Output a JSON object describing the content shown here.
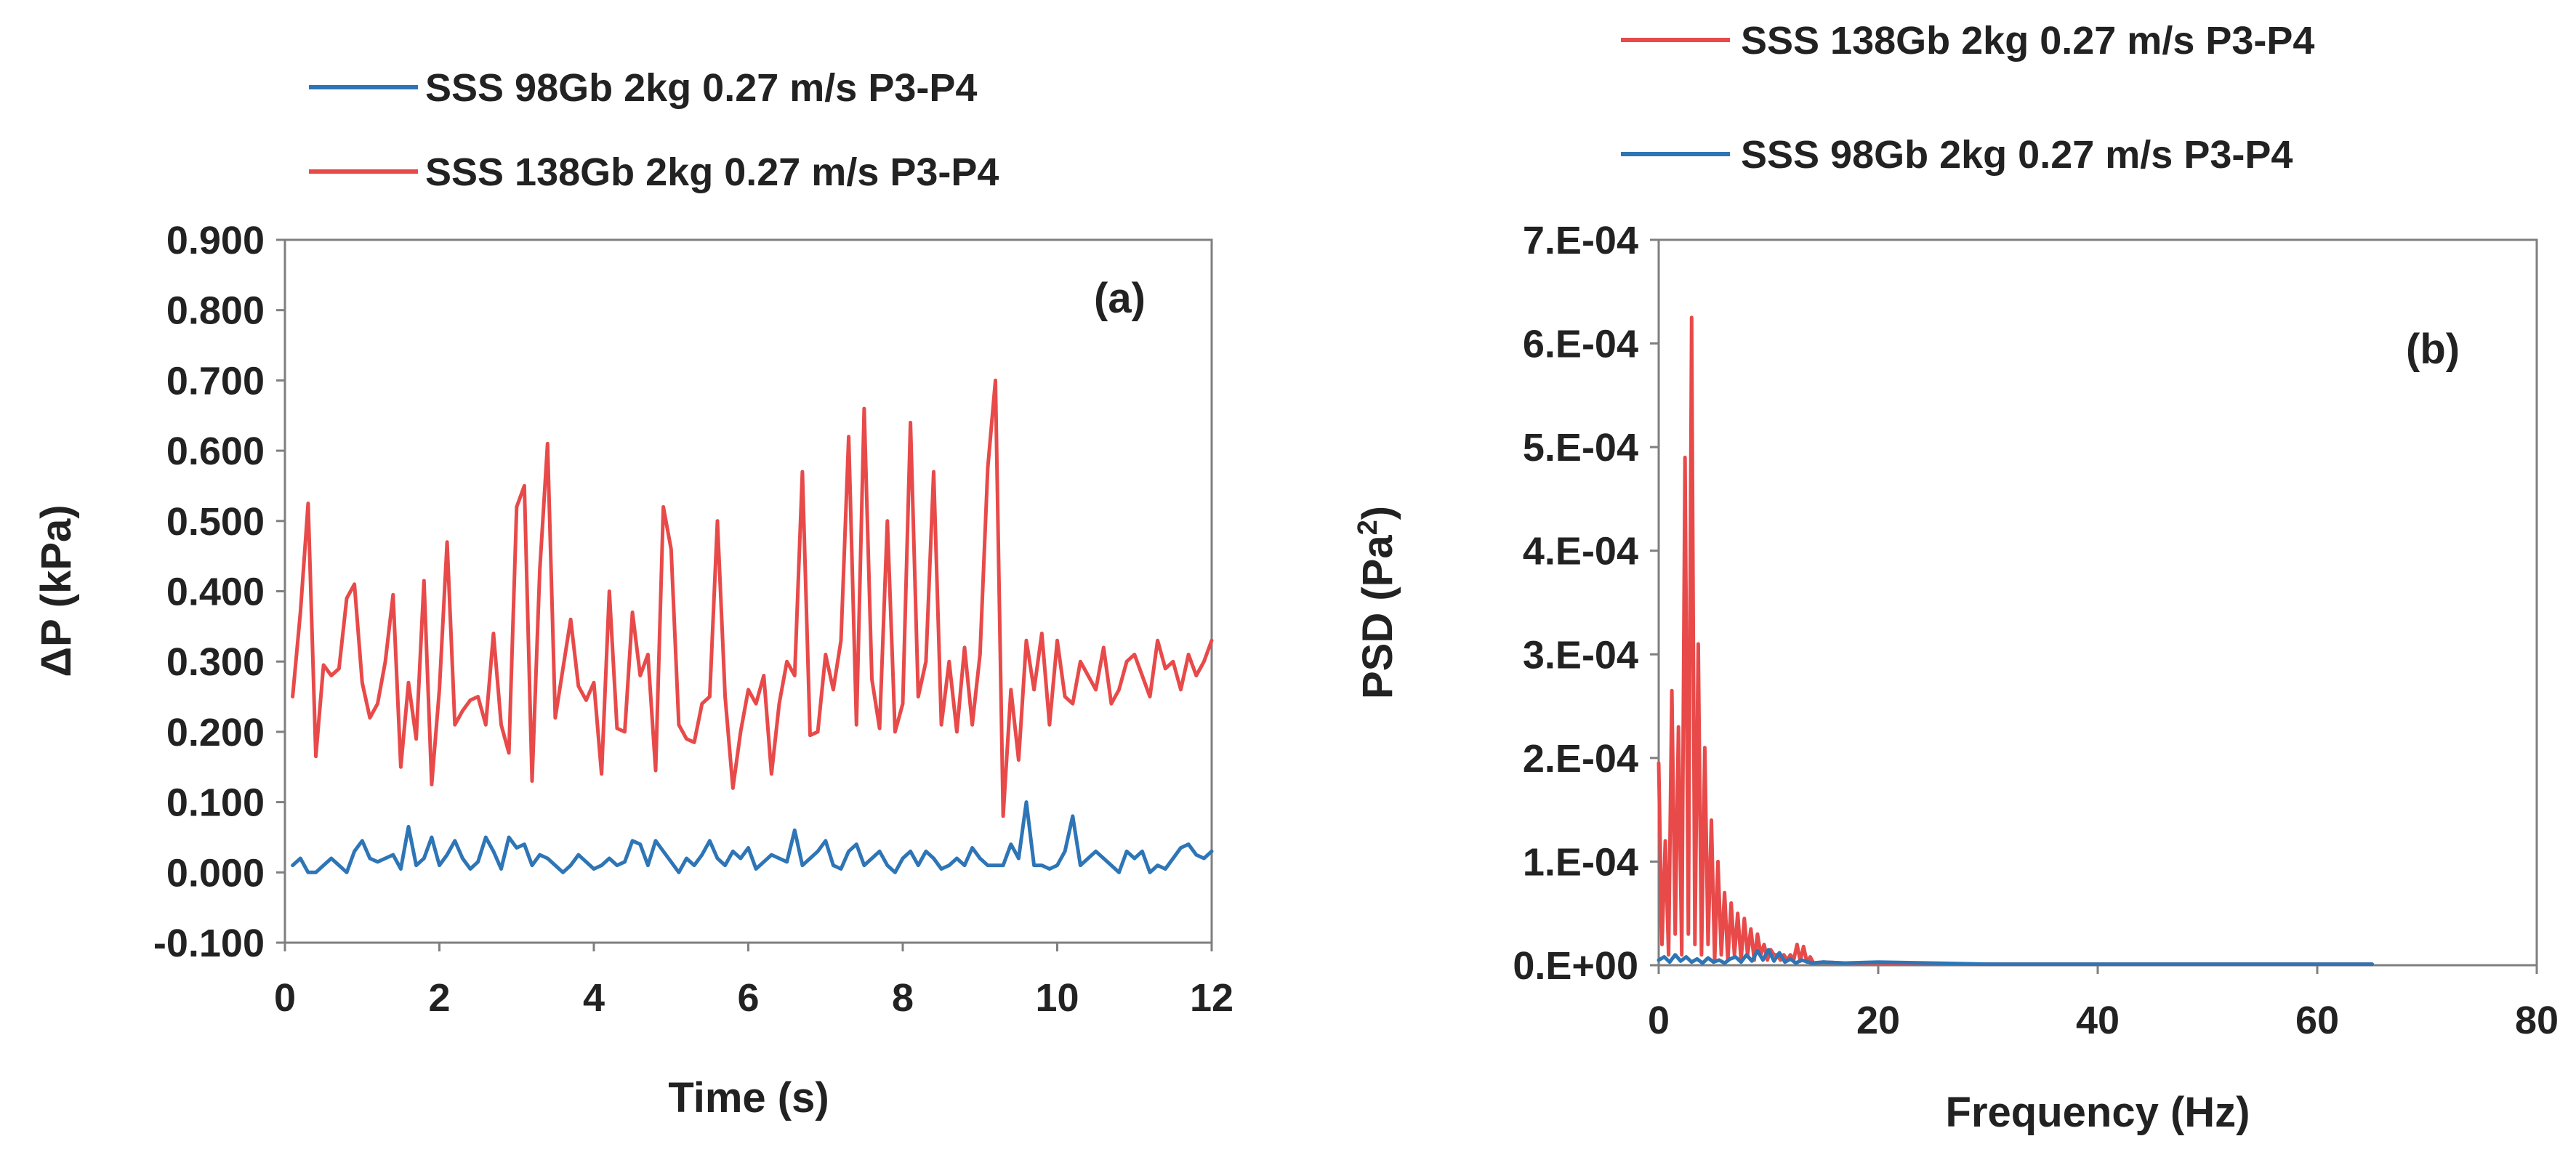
{
  "chart_data": [
    {
      "type": "line",
      "panel_label": "(a)",
      "xlabel": "Time (s)",
      "ylabel": "ΔP (kPa)",
      "xlim": [
        0,
        12
      ],
      "ylim": [
        -0.1,
        0.9
      ],
      "x_ticks": [
        0,
        2,
        4,
        6,
        8,
        10,
        12
      ],
      "x_tick_labels": [
        "0",
        "2",
        "4",
        "6",
        "8",
        "10",
        "12"
      ],
      "y_ticks": [
        -0.1,
        0.0,
        0.1,
        0.2,
        0.3,
        0.4,
        0.5,
        0.6,
        0.7,
        0.8,
        0.9
      ],
      "y_tick_labels": [
        "-0.100",
        "0.000",
        "0.100",
        "0.200",
        "0.300",
        "0.400",
        "0.500",
        "0.600",
        "0.700",
        "0.800",
        "0.900"
      ],
      "grid": false,
      "legend_position": "top",
      "legend": [
        "SSS 98Gb 2kg 0.27 m/s P3-P4",
        "SSS 138Gb 2kg 0.27 m/s P3-P4"
      ],
      "series": [
        {
          "name": "SSS 98Gb 2kg 0.27 m/s P3-P4",
          "color": "#2e75b6",
          "x": [
            0.1,
            0.2,
            0.3,
            0.4,
            0.5,
            0.6,
            0.7,
            0.8,
            0.9,
            1.0,
            1.1,
            1.2,
            1.3,
            1.4,
            1.5,
            1.6,
            1.7,
            1.8,
            1.9,
            2.0,
            2.1,
            2.2,
            2.3,
            2.4,
            2.5,
            2.6,
            2.7,
            2.8,
            2.9,
            3.0,
            3.1,
            3.2,
            3.3,
            3.4,
            3.5,
            3.6,
            3.7,
            3.8,
            3.9,
            4.0,
            4.1,
            4.2,
            4.3,
            4.4,
            4.5,
            4.6,
            4.7,
            4.8,
            4.9,
            5.0,
            5.1,
            5.2,
            5.3,
            5.4,
            5.5,
            5.6,
            5.7,
            5.8,
            5.9,
            6.0,
            6.1,
            6.2,
            6.3,
            6.4,
            6.5,
            6.6,
            6.7,
            6.8,
            6.9,
            7.0,
            7.1,
            7.2,
            7.3,
            7.4,
            7.5,
            7.6,
            7.7,
            7.8,
            7.9,
            8.0,
            8.1,
            8.2,
            8.3,
            8.4,
            8.5,
            8.6,
            8.7,
            8.8,
            8.9,
            9.0,
            9.1,
            9.2,
            9.3,
            9.4,
            9.5,
            9.6,
            9.7,
            9.8,
            9.9,
            10.0,
            10.1,
            10.2,
            10.3,
            10.4,
            10.5,
            10.6,
            10.7,
            10.8,
            10.9,
            11.0,
            11.1,
            11.2,
            11.3,
            11.4,
            11.5,
            11.6,
            11.7,
            11.8,
            11.9,
            12.0
          ],
          "values": [
            0.01,
            0.02,
            0.0,
            0.0,
            0.01,
            0.02,
            0.01,
            0.0,
            0.03,
            0.045,
            0.02,
            0.015,
            0.02,
            0.025,
            0.005,
            0.065,
            0.01,
            0.02,
            0.05,
            0.01,
            0.025,
            0.045,
            0.02,
            0.005,
            0.015,
            0.05,
            0.03,
            0.005,
            0.05,
            0.035,
            0.04,
            0.01,
            0.025,
            0.02,
            0.01,
            0.0,
            0.01,
            0.025,
            0.015,
            0.005,
            0.01,
            0.02,
            0.01,
            0.015,
            0.045,
            0.04,
            0.01,
            0.045,
            0.03,
            0.015,
            0.0,
            0.02,
            0.01,
            0.025,
            0.045,
            0.02,
            0.01,
            0.03,
            0.02,
            0.035,
            0.005,
            0.015,
            0.025,
            0.02,
            0.015,
            0.06,
            0.01,
            0.02,
            0.03,
            0.045,
            0.01,
            0.005,
            0.03,
            0.04,
            0.01,
            0.02,
            0.03,
            0.01,
            0.0,
            0.02,
            0.03,
            0.01,
            0.03,
            0.02,
            0.005,
            0.01,
            0.02,
            0.01,
            0.035,
            0.02,
            0.01,
            0.01,
            0.01,
            0.04,
            0.02,
            0.1,
            0.01,
            0.01,
            0.005,
            0.01,
            0.03,
            0.08,
            0.01,
            0.02,
            0.03,
            0.02,
            0.01,
            0.0,
            0.03,
            0.02,
            0.03,
            0.0,
            0.01,
            0.005,
            0.02,
            0.035,
            0.04,
            0.025,
            0.02,
            0.03
          ]
        },
        {
          "name": "SSS 138Gb 2kg 0.27 m/s P3-P4",
          "color": "#e84a4a",
          "x": [
            0.1,
            0.2,
            0.3,
            0.4,
            0.5,
            0.6,
            0.7,
            0.8,
            0.9,
            1.0,
            1.1,
            1.2,
            1.3,
            1.4,
            1.5,
            1.6,
            1.7,
            1.8,
            1.9,
            2.0,
            2.1,
            2.2,
            2.3,
            2.4,
            2.5,
            2.6,
            2.7,
            2.8,
            2.9,
            3.0,
            3.1,
            3.2,
            3.3,
            3.4,
            3.5,
            3.6,
            3.7,
            3.8,
            3.9,
            4.0,
            4.1,
            4.2,
            4.3,
            4.4,
            4.5,
            4.6,
            4.7,
            4.8,
            4.9,
            5.0,
            5.1,
            5.2,
            5.3,
            5.4,
            5.5,
            5.6,
            5.7,
            5.8,
            5.9,
            6.0,
            6.1,
            6.2,
            6.3,
            6.4,
            6.5,
            6.6,
            6.7,
            6.8,
            6.9,
            7.0,
            7.1,
            7.2,
            7.3,
            7.4,
            7.5,
            7.6,
            7.7,
            7.8,
            7.9,
            8.0,
            8.1,
            8.2,
            8.3,
            8.4,
            8.5,
            8.6,
            8.7,
            8.8,
            8.9,
            9.0,
            9.1,
            9.2,
            9.3,
            9.4,
            9.5,
            9.6,
            9.7,
            9.8,
            9.9,
            10.0,
            10.1,
            10.2,
            10.3,
            10.4,
            10.5,
            10.6,
            10.7,
            10.8,
            10.9,
            11.0,
            11.1,
            11.2,
            11.3,
            11.4,
            11.5,
            11.6,
            11.7,
            11.8,
            11.9,
            12.0
          ],
          "values": [
            0.25,
            0.37,
            0.525,
            0.165,
            0.295,
            0.28,
            0.29,
            0.39,
            0.41,
            0.27,
            0.22,
            0.24,
            0.3,
            0.395,
            0.15,
            0.27,
            0.19,
            0.415,
            0.125,
            0.26,
            0.47,
            0.21,
            0.23,
            0.245,
            0.25,
            0.21,
            0.34,
            0.21,
            0.17,
            0.52,
            0.55,
            0.13,
            0.43,
            0.61,
            0.22,
            0.29,
            0.36,
            0.265,
            0.245,
            0.27,
            0.14,
            0.4,
            0.205,
            0.2,
            0.37,
            0.28,
            0.31,
            0.145,
            0.52,
            0.46,
            0.21,
            0.19,
            0.185,
            0.24,
            0.25,
            0.5,
            0.25,
            0.12,
            0.2,
            0.26,
            0.24,
            0.28,
            0.14,
            0.24,
            0.3,
            0.28,
            0.57,
            0.195,
            0.2,
            0.31,
            0.26,
            0.33,
            0.62,
            0.21,
            0.66,
            0.275,
            0.205,
            0.5,
            0.2,
            0.24,
            0.64,
            0.25,
            0.3,
            0.57,
            0.21,
            0.3,
            0.2,
            0.32,
            0.21,
            0.31,
            0.575,
            0.7,
            0.08,
            0.26,
            0.16,
            0.33,
            0.26,
            0.34,
            0.21,
            0.33,
            0.25,
            0.24,
            0.3,
            0.28,
            0.26,
            0.32,
            0.24,
            0.26,
            0.3,
            0.31,
            0.28,
            0.25,
            0.33,
            0.29,
            0.3,
            0.26,
            0.31,
            0.28,
            0.3,
            0.33
          ]
        }
      ]
    },
    {
      "type": "line",
      "panel_label": "(b)",
      "xlabel": "Frequency (Hz)",
      "ylabel": "PSD (Pa",
      "ylabel_superscript": "2",
      "ylabel_suffix": ")",
      "xlim": [
        0,
        80
      ],
      "ylim": [
        0,
        0.0007
      ],
      "x_ticks": [
        0,
        20,
        40,
        60,
        80
      ],
      "x_tick_labels": [
        "0",
        "20",
        "40",
        "60",
        "80"
      ],
      "y_ticks": [
        0,
        0.0001,
        0.0002,
        0.0003,
        0.0004,
        0.0005,
        0.0006,
        0.0007
      ],
      "y_tick_labels": [
        "0.E+00",
        "1.E-04",
        "2.E-04",
        "3.E-04",
        "4.E-04",
        "5.E-04",
        "6.E-04",
        "7.E-04"
      ],
      "grid": false,
      "legend_position": "top",
      "legend": [
        "SSS 138Gb 2kg 0.27 m/s P3-P4",
        "SSS 98Gb 2kg 0.27 m/s P3-P4"
      ],
      "series": [
        {
          "name": "SSS 138Gb 2kg 0.27 m/s P3-P4",
          "color": "#e84a4a",
          "x": [
            0.0,
            0.3,
            0.6,
            0.9,
            1.2,
            1.5,
            1.8,
            2.1,
            2.4,
            2.7,
            3.0,
            3.3,
            3.6,
            3.9,
            4.2,
            4.5,
            4.8,
            5.1,
            5.4,
            5.7,
            6.0,
            6.3,
            6.6,
            6.9,
            7.2,
            7.5,
            7.8,
            8.1,
            8.4,
            8.7,
            9.0,
            9.3,
            9.6,
            9.9,
            10.2,
            10.5,
            10.8,
            11.1,
            11.4,
            11.7,
            12.0,
            12.3,
            12.6,
            12.9,
            13.2,
            13.5,
            13.8,
            14.1,
            15.0,
            17.0,
            20.0,
            25.0,
            30.0,
            40.0,
            50.0,
            60.0,
            65.0
          ],
          "values": [
            0.000195,
            2e-05,
            0.00012,
            1e-05,
            0.000265,
            3e-05,
            0.00023,
            1e-05,
            0.00049,
            3e-05,
            0.000625,
            2e-05,
            0.00031,
            1e-05,
            0.00021,
            2e-05,
            0.00014,
            5e-06,
            0.0001,
            1e-05,
            7e-05,
            5e-06,
            6e-05,
            1e-05,
            5e-05,
            5e-06,
            4.5e-05,
            1e-05,
            3.5e-05,
            5e-06,
            3e-05,
            1e-05,
            2e-05,
            5e-06,
            1.5e-05,
            1e-05,
            1e-05,
            5e-06,
            1e-05,
            5e-06,
            1e-05,
            5e-06,
            2e-05,
            4e-06,
            1.8e-05,
            3e-06,
            8e-06,
            2e-06,
            3e-06,
            2e-06,
            2e-06,
            1e-06,
            1e-06,
            1e-06,
            1e-06,
            1e-06,
            1e-06
          ]
        },
        {
          "name": "SSS 98Gb 2kg 0.27 m/s P3-P4",
          "color": "#2e75b6",
          "x": [
            0.0,
            0.5,
            1.0,
            1.5,
            2.0,
            2.5,
            3.0,
            3.5,
            4.0,
            4.5,
            5.0,
            5.5,
            6.0,
            6.5,
            7.0,
            7.5,
            8.0,
            8.5,
            9.0,
            9.5,
            10.0,
            10.5,
            11.0,
            11.5,
            12.0,
            12.5,
            13.0,
            14.0,
            15.0,
            17.0,
            20.0,
            25.0,
            30.0,
            40.0,
            50.0,
            60.0,
            65.0
          ],
          "values": [
            5e-06,
            8e-06,
            3e-06,
            1e-05,
            4e-06,
            8e-06,
            3e-06,
            6e-06,
            2e-06,
            7e-06,
            3e-06,
            5e-06,
            2e-06,
            6e-06,
            8e-06,
            3e-06,
            1e-05,
            4e-06,
            1.4e-05,
            5e-06,
            1.5e-05,
            4e-06,
            1.2e-05,
            3e-06,
            6e-06,
            2e-06,
            5e-06,
            2e-06,
            3e-06,
            2e-06,
            3e-06,
            2e-06,
            1e-06,
            1e-06,
            1e-06,
            1e-06,
            1e-06
          ]
        }
      ]
    }
  ]
}
